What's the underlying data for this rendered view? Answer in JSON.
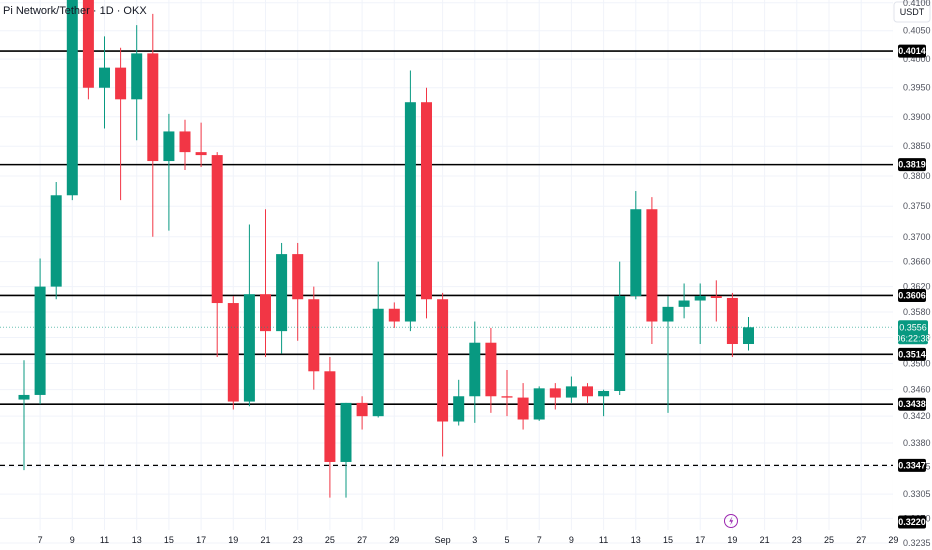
{
  "header": {
    "title": "Pi Network/Tether · 1D · OKX"
  },
  "axis": {
    "currency": "USDT"
  },
  "colors": {
    "up": "#089981",
    "down": "#f23645",
    "level_line": "#000000",
    "grid": "#f0f3fa",
    "axis_text": "#50535e",
    "event_icon": "#9c27b0"
  },
  "chart_data": {
    "type": "candlestick",
    "title": "Pi Network/Tether · 1D · OKX",
    "ylabel": "USDT",
    "y_scale": "log",
    "ylim": [
      0.3225,
      0.4105
    ],
    "y_ticks": [
      "0.4100",
      "0.4050",
      "0.4000",
      "0.3950",
      "0.3900",
      "0.3850",
      "0.3800",
      "0.3750",
      "0.3700",
      "0.3660",
      "0.3620",
      "0.3580",
      "0.3540",
      "0.3500",
      "0.3460",
      "0.3420",
      "0.3380",
      "0.3345",
      "0.3305",
      "0.3270",
      "0.3235"
    ],
    "x_ticks": [
      {
        "label": "7",
        "i": 1
      },
      {
        "label": "9",
        "i": 3
      },
      {
        "label": "11",
        "i": 5
      },
      {
        "label": "13",
        "i": 7
      },
      {
        "label": "15",
        "i": 9
      },
      {
        "label": "17",
        "i": 11
      },
      {
        "label": "19",
        "i": 13
      },
      {
        "label": "21",
        "i": 15
      },
      {
        "label": "23",
        "i": 17
      },
      {
        "label": "25",
        "i": 19
      },
      {
        "label": "27",
        "i": 21
      },
      {
        "label": "29",
        "i": 23
      },
      {
        "label": "Sep",
        "i": 26
      },
      {
        "label": "3",
        "i": 28
      },
      {
        "label": "5",
        "i": 30
      },
      {
        "label": "7",
        "i": 32
      },
      {
        "label": "9",
        "i": 34
      },
      {
        "label": "11",
        "i": 36
      },
      {
        "label": "13",
        "i": 38
      },
      {
        "label": "15",
        "i": 40
      },
      {
        "label": "17",
        "i": 42
      },
      {
        "label": "19",
        "i": 44
      },
      {
        "label": "21",
        "i": 46
      },
      {
        "label": "23",
        "i": 48
      },
      {
        "label": "25",
        "i": 50
      },
      {
        "label": "27",
        "i": 52
      },
      {
        "label": "29",
        "i": 54
      }
    ],
    "candles": [
      {
        "o": 0.3445,
        "h": 0.3505,
        "l": 0.334,
        "c": 0.3452
      },
      {
        "o": 0.3452,
        "h": 0.3665,
        "l": 0.3438,
        "c": 0.362
      },
      {
        "o": 0.362,
        "h": 0.379,
        "l": 0.36,
        "c": 0.3768
      },
      {
        "o": 0.3768,
        "h": 0.411,
        "l": 0.376,
        "c": 0.4105
      },
      {
        "o": 0.4105,
        "h": 0.411,
        "l": 0.393,
        "c": 0.395
      },
      {
        "o": 0.395,
        "h": 0.404,
        "l": 0.388,
        "c": 0.3985
      },
      {
        "o": 0.3985,
        "h": 0.402,
        "l": 0.376,
        "c": 0.393
      },
      {
        "o": 0.393,
        "h": 0.406,
        "l": 0.386,
        "c": 0.401
      },
      {
        "o": 0.401,
        "h": 0.408,
        "l": 0.37,
        "c": 0.3825
      },
      {
        "o": 0.3825,
        "h": 0.3905,
        "l": 0.371,
        "c": 0.3875
      },
      {
        "o": 0.3875,
        "h": 0.3895,
        "l": 0.381,
        "c": 0.384
      },
      {
        "o": 0.384,
        "h": 0.389,
        "l": 0.3815,
        "c": 0.3835
      },
      {
        "o": 0.3835,
        "h": 0.384,
        "l": 0.351,
        "c": 0.3594
      },
      {
        "o": 0.3594,
        "h": 0.3605,
        "l": 0.343,
        "c": 0.3442
      },
      {
        "o": 0.3442,
        "h": 0.372,
        "l": 0.3435,
        "c": 0.3608
      },
      {
        "o": 0.3608,
        "h": 0.3745,
        "l": 0.351,
        "c": 0.355
      },
      {
        "o": 0.355,
        "h": 0.369,
        "l": 0.3515,
        "c": 0.3672
      },
      {
        "o": 0.3672,
        "h": 0.369,
        "l": 0.3535,
        "c": 0.36
      },
      {
        "o": 0.36,
        "h": 0.362,
        "l": 0.346,
        "c": 0.3488
      },
      {
        "o": 0.3488,
        "h": 0.351,
        "l": 0.33,
        "c": 0.3352
      },
      {
        "o": 0.3352,
        "h": 0.344,
        "l": 0.33,
        "c": 0.344
      },
      {
        "o": 0.344,
        "h": 0.345,
        "l": 0.34,
        "c": 0.342
      },
      {
        "o": 0.342,
        "h": 0.366,
        "l": 0.3418,
        "c": 0.3585
      },
      {
        "o": 0.3585,
        "h": 0.3595,
        "l": 0.3555,
        "c": 0.3565
      },
      {
        "o": 0.3565,
        "h": 0.398,
        "l": 0.355,
        "c": 0.3925
      },
      {
        "o": 0.3925,
        "h": 0.395,
        "l": 0.357,
        "c": 0.36
      },
      {
        "o": 0.36,
        "h": 0.361,
        "l": 0.336,
        "c": 0.3412
      },
      {
        "o": 0.3412,
        "h": 0.3475,
        "l": 0.3406,
        "c": 0.345
      },
      {
        "o": 0.345,
        "h": 0.3565,
        "l": 0.341,
        "c": 0.3532
      },
      {
        "o": 0.3532,
        "h": 0.3555,
        "l": 0.3425,
        "c": 0.345
      },
      {
        "o": 0.345,
        "h": 0.349,
        "l": 0.342,
        "c": 0.3448
      },
      {
        "o": 0.3448,
        "h": 0.347,
        "l": 0.34,
        "c": 0.3415
      },
      {
        "o": 0.3415,
        "h": 0.3465,
        "l": 0.3413,
        "c": 0.3462
      },
      {
        "o": 0.3462,
        "h": 0.347,
        "l": 0.343,
        "c": 0.3448
      },
      {
        "o": 0.3448,
        "h": 0.348,
        "l": 0.344,
        "c": 0.3465
      },
      {
        "o": 0.3465,
        "h": 0.347,
        "l": 0.344,
        "c": 0.345
      },
      {
        "o": 0.345,
        "h": 0.346,
        "l": 0.342,
        "c": 0.3458
      },
      {
        "o": 0.3458,
        "h": 0.366,
        "l": 0.3452,
        "c": 0.3605
      },
      {
        "o": 0.3605,
        "h": 0.3775,
        "l": 0.36,
        "c": 0.3745
      },
      {
        "o": 0.3745,
        "h": 0.3765,
        "l": 0.353,
        "c": 0.3565
      },
      {
        "o": 0.3565,
        "h": 0.3605,
        "l": 0.3425,
        "c": 0.3588
      },
      {
        "o": 0.3588,
        "h": 0.3625,
        "l": 0.357,
        "c": 0.3598
      },
      {
        "o": 0.3598,
        "h": 0.3625,
        "l": 0.353,
        "c": 0.3605
      },
      {
        "o": 0.3605,
        "h": 0.363,
        "l": 0.3565,
        "c": 0.3602
      },
      {
        "o": 0.3602,
        "h": 0.361,
        "l": 0.351,
        "c": 0.353
      },
      {
        "o": 0.353,
        "h": 0.3572,
        "l": 0.352,
        "c": 0.3556
      }
    ],
    "levels": [
      {
        "value": 0.4014,
        "label": "0.4014",
        "style": "solid"
      },
      {
        "value": 0.3819,
        "label": "0.3819",
        "style": "solid"
      },
      {
        "value": 0.3606,
        "label": "0.3606",
        "style": "solid"
      },
      {
        "value": 0.3514,
        "label": "0.3514",
        "style": "solid"
      },
      {
        "value": 0.3438,
        "label": "0.3438",
        "style": "solid"
      },
      {
        "value": 0.3347,
        "label": "0.3347",
        "style": "dashed"
      }
    ],
    "bottom_tag": {
      "value": 0.322,
      "label": "0.3220"
    },
    "current": {
      "value": 0.3556,
      "price_label": "0.3556",
      "countdown": "06:22:38"
    },
    "grid": true
  }
}
